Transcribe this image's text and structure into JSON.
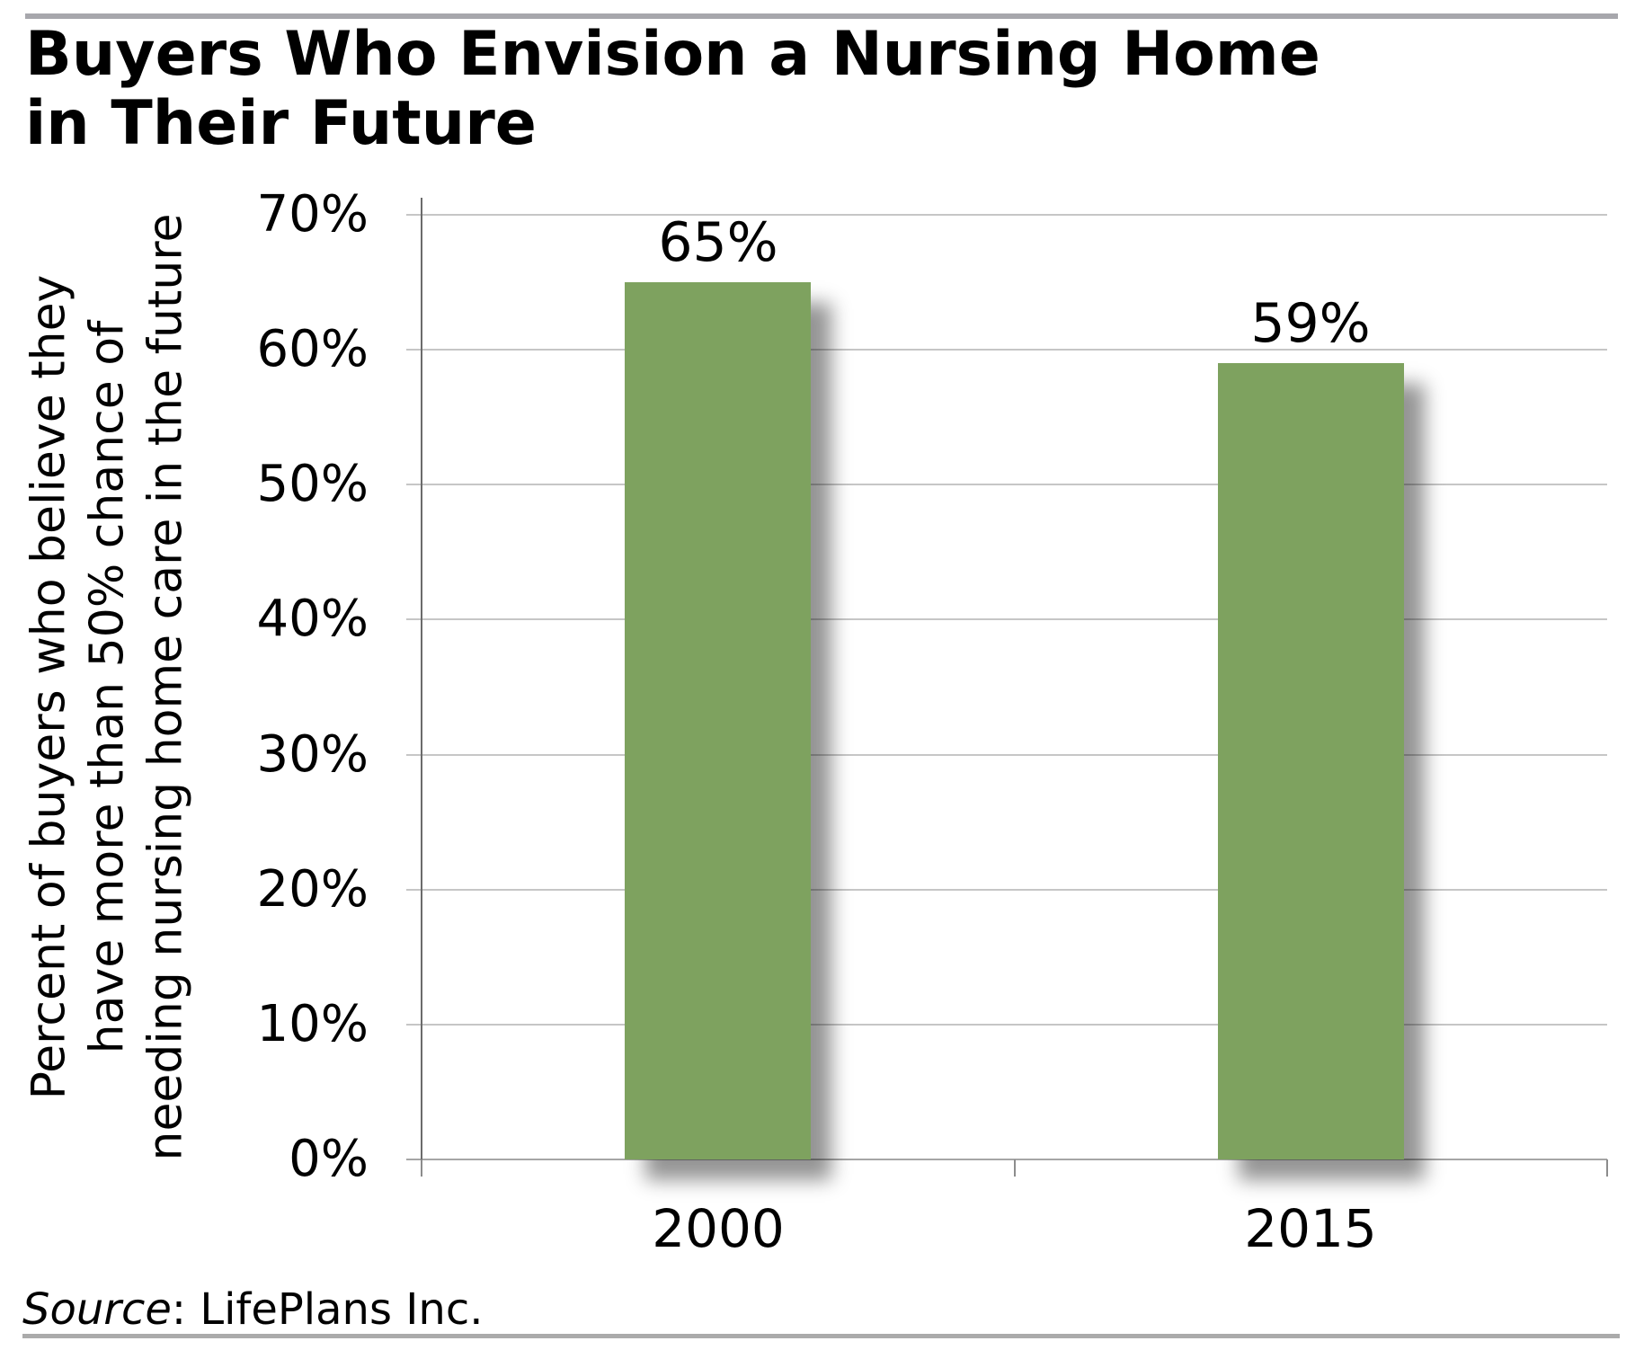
{
  "header": {
    "title_line1": "Buyers Who Envision a Nursing Home",
    "title_line2": "in Their Future"
  },
  "footer": {
    "source_label": "Source",
    "source_rest": ": LifePlans Inc."
  },
  "chart_data": {
    "type": "bar",
    "title": "Buyers Who Envision a Nursing Home in Their Future",
    "categories": [
      "2000",
      "2015"
    ],
    "values": [
      65,
      59
    ],
    "bar_labels": [
      "65%",
      "59%"
    ],
    "ylabel_lines": [
      "Percent of buyers who believe they",
      "have more than 50% chance of",
      "needing nursing home care in the future"
    ],
    "ylim": [
      0,
      70
    ],
    "ytick_step": 10,
    "ytick_labels": [
      "0%",
      "10%",
      "20%",
      "30%",
      "40%",
      "50%",
      "60%",
      "70%"
    ],
    "grid": true,
    "legend_position": "none",
    "colors": {
      "bar": "#7EA25F",
      "gridline": "#C6C6C6",
      "baseline": "#A6A6A6",
      "axis_line": "#6B6B6B",
      "tick": "#8C8C8C",
      "text": "#000000"
    }
  }
}
